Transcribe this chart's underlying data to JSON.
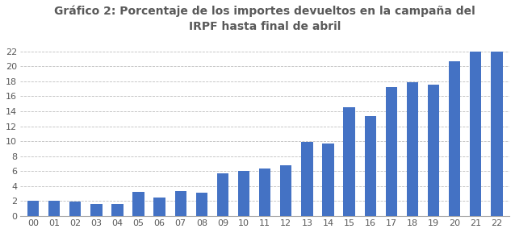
{
  "title_line1": "Gráfico 2: Porcentaje de los importes devueltos en la campaña del",
  "title_line2": "IRPF hasta final de abril",
  "categories": [
    "00",
    "01",
    "02",
    "03",
    "04",
    "05",
    "06",
    "07",
    "08",
    "09",
    "10",
    "11",
    "12",
    "13",
    "14",
    "15",
    "16",
    "17",
    "18",
    "19",
    "20",
    "21",
    "22"
  ],
  "values": [
    2.0,
    2.0,
    1.9,
    1.6,
    1.6,
    3.2,
    2.5,
    3.3,
    3.1,
    5.7,
    6.0,
    6.3,
    6.8,
    9.9,
    9.7,
    14.5,
    13.3,
    17.2,
    17.9,
    17.5,
    20.7,
    22.0,
    22.0
  ],
  "bar_color": "#4472c4",
  "ylim": [
    0,
    24
  ],
  "yticks": [
    0,
    2,
    4,
    6,
    8,
    10,
    12,
    14,
    16,
    18,
    20,
    22
  ],
  "background_color": "#ffffff",
  "grid_color": "#bfbfbf",
  "title_color": "#595959",
  "tick_color": "#595959",
  "title_fontsize": 10,
  "tick_fontsize": 8,
  "bar_width": 0.55
}
